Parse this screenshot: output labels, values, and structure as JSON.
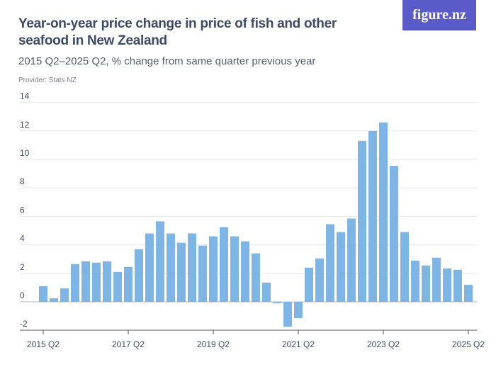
{
  "title": "Year-on-year price change in price of fish and other seafood in New Zealand",
  "subtitle": "2015 Q2–2025 Q2, % change from same quarter previous year",
  "provider": "Provider: Stats NZ",
  "logo": "figure.nz",
  "chart_data": {
    "type": "bar",
    "title": "Year-on-year price change in price of fish and other seafood in New Zealand",
    "subtitle": "2015 Q2–2025 Q2, % change from same quarter previous year",
    "ylim": [
      -2,
      14
    ],
    "yticks": [
      "-2",
      "0",
      "2",
      "4",
      "6",
      "8",
      "10",
      "12",
      "14"
    ],
    "xticks": [
      "2015 Q2",
      "2017 Q2",
      "2019 Q2",
      "2021 Q2",
      "2023 Q2",
      "2025 Q2"
    ],
    "grid": true,
    "color": "#7fb5e4",
    "categories": [
      "2015 Q2",
      "2015 Q3",
      "2015 Q4",
      "2016 Q1",
      "2016 Q2",
      "2016 Q3",
      "2016 Q4",
      "2017 Q1",
      "2017 Q2",
      "2017 Q3",
      "2017 Q4",
      "2018 Q1",
      "2018 Q2",
      "2018 Q3",
      "2018 Q4",
      "2019 Q1",
      "2019 Q2",
      "2019 Q3",
      "2019 Q4",
      "2020 Q1",
      "2020 Q2",
      "2020 Q3",
      "2020 Q4",
      "2021 Q1",
      "2021 Q2",
      "2021 Q3",
      "2021 Q4",
      "2022 Q1",
      "2022 Q2",
      "2022 Q3",
      "2022 Q4",
      "2023 Q1",
      "2023 Q2",
      "2023 Q3",
      "2023 Q4",
      "2024 Q1",
      "2024 Q2",
      "2024 Q3",
      "2024 Q4",
      "2025 Q1",
      "2025 Q2"
    ],
    "values": [
      1.1,
      0.25,
      0.95,
      2.65,
      2.85,
      2.75,
      2.85,
      2.1,
      2.45,
      3.7,
      4.8,
      5.65,
      4.8,
      4.15,
      4.8,
      3.95,
      4.6,
      5.25,
      4.6,
      4.25,
      3.4,
      1.35,
      -0.1,
      -1.75,
      -1.15,
      2.4,
      3.05,
      5.45,
      4.9,
      5.85,
      11.3,
      12.0,
      12.6,
      9.55,
      4.9,
      2.9,
      2.55,
      3.1,
      2.35,
      2.25,
      1.2
    ]
  }
}
